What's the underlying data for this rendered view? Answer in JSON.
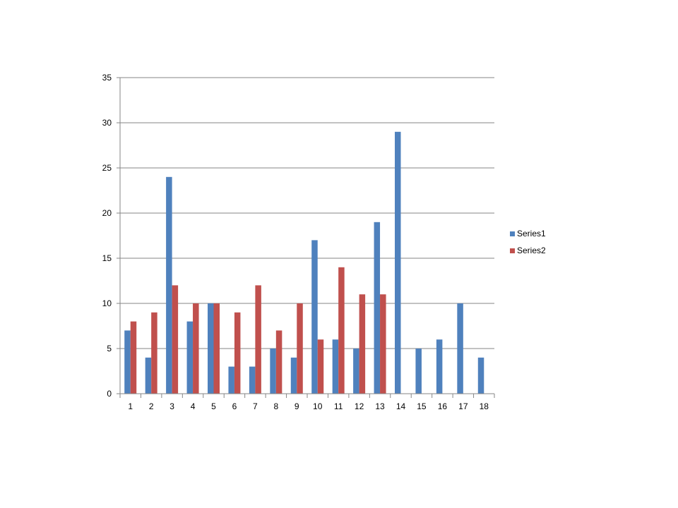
{
  "chart_data": {
    "type": "bar",
    "categories": [
      "1",
      "2",
      "3",
      "4",
      "5",
      "6",
      "7",
      "8",
      "9",
      "10",
      "11",
      "12",
      "13",
      "14",
      "15",
      "16",
      "17",
      "18"
    ],
    "series": [
      {
        "name": "Series1",
        "color": "#4F81BD",
        "values": [
          7,
          4,
          24,
          8,
          10,
          3,
          3,
          5,
          4,
          17,
          6,
          5,
          19,
          29,
          5,
          6,
          10,
          4
        ]
      },
      {
        "name": "Series2",
        "color": "#C0504D",
        "values": [
          8,
          9,
          12,
          10,
          10,
          9,
          12,
          7,
          10,
          6,
          14,
          11,
          11,
          null,
          null,
          null,
          null,
          null
        ]
      }
    ],
    "ylim": [
      0,
      35
    ],
    "yticks": [
      0,
      5,
      10,
      15,
      20,
      25,
      30,
      35
    ],
    "grid": true,
    "legend_position": "right"
  }
}
